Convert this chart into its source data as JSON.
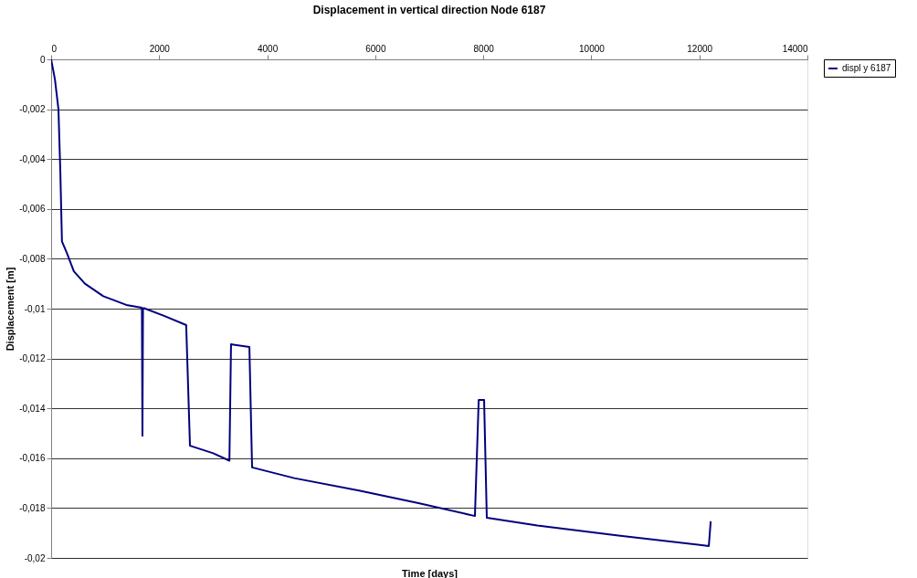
{
  "chart_data": {
    "type": "line",
    "title": "Displacement in vertical direction Node 6187",
    "xlabel": "Time [days]",
    "ylabel": "Displacement [m]",
    "xlim": [
      0,
      14000
    ],
    "xticks": [
      0,
      2000,
      4000,
      6000,
      8000,
      10000,
      12000,
      14000
    ],
    "ylim": [
      -0.02,
      0
    ],
    "yticks": [
      {
        "value": -0.02,
        "label": "-0,02"
      },
      {
        "value": -0.018,
        "label": "-0,018"
      },
      {
        "value": -0.016,
        "label": "-0,016"
      },
      {
        "value": -0.014,
        "label": "-0,014"
      },
      {
        "value": -0.012,
        "label": "-0,012"
      },
      {
        "value": -0.01,
        "label": "-0,01"
      },
      {
        "value": -0.008,
        "label": "-0,008"
      },
      {
        "value": -0.006,
        "label": "-0,006"
      },
      {
        "value": -0.004,
        "label": "-0,004"
      },
      {
        "value": -0.002,
        "label": "-0,002"
      },
      0
    ],
    "grid": "y",
    "legend": "right",
    "marker": "none",
    "line_style": "solid",
    "series": [
      {
        "name": "displ y 6187",
        "color": "#000080",
        "x": [
          0,
          70,
          135,
          170,
          200,
          290,
          420,
          625,
          965,
          1390,
          1680,
          1690,
          1700,
          1720,
          2100,
          2500,
          2570,
          3000,
          3300,
          3330,
          3670,
          3720,
          4500,
          5700,
          6800,
          7845,
          7915,
          8015,
          8065,
          9000,
          10500,
          12175,
          12210
        ],
        "values": [
          0,
          -0.0008,
          -0.002,
          -0.0045,
          -0.0073,
          -0.00776,
          -0.0085,
          -0.009,
          -0.0095,
          -0.00985,
          -0.00996,
          -0.0151,
          -0.01,
          -0.00998,
          -0.0103,
          -0.01066,
          -0.0155,
          -0.0158,
          -0.0161,
          -0.01143,
          -0.01154,
          -0.01637,
          -0.0168,
          -0.0173,
          -0.0178,
          -0.01832,
          -0.01366,
          -0.01366,
          -0.01839,
          -0.0187,
          -0.0191,
          -0.01952,
          -0.01853
        ]
      }
    ]
  }
}
